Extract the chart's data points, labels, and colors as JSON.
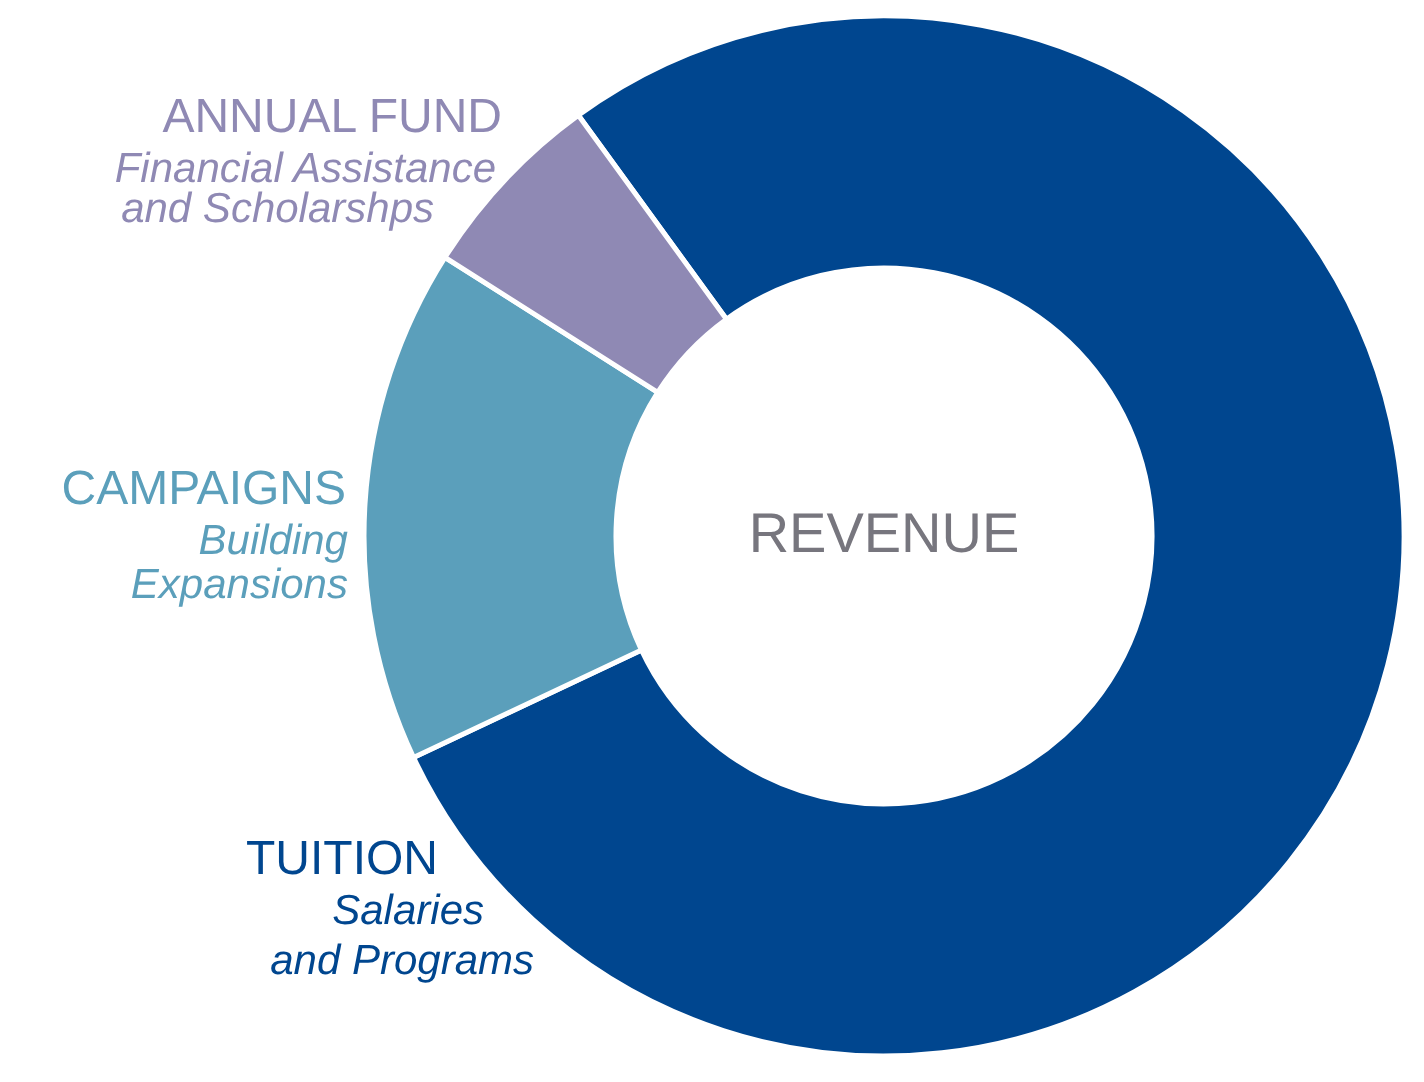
{
  "chart_data": {
    "type": "donut",
    "title": "REVENUE",
    "categories": [
      "TUITION",
      "CAMPAIGNS",
      "ANNUAL FUND"
    ],
    "values": [
      78,
      16,
      6
    ],
    "colors": [
      "#00468f",
      "#5b9fbb",
      "#8f89b4"
    ],
    "annotations": [
      "Salaries\nand Programs",
      "Building\nExpansions",
      "Financial Assistance\nand Scholarshps"
    ]
  }
}
